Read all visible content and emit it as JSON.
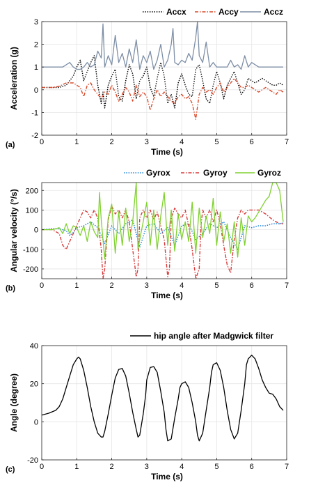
{
  "chart_data": [
    {
      "type": "line",
      "panel_label": "(a)",
      "xlabel": "Time (s)",
      "ylabel": "Acceleration (g)",
      "xlim": [
        0,
        7
      ],
      "ylim": [
        -2,
        3
      ],
      "xticks": [
        0,
        1,
        2,
        3,
        4,
        5,
        6,
        7
      ],
      "yticks": [
        -2,
        -1,
        0,
        1,
        2,
        3
      ],
      "grid": true,
      "legend": "top-right",
      "series": [
        {
          "name": "Accx",
          "color": "#000000",
          "style": "dotted",
          "x": [
            0,
            0.3,
            0.5,
            0.7,
            0.9,
            1.0,
            1.1,
            1.2,
            1.3,
            1.4,
            1.5,
            1.6,
            1.7,
            1.75,
            1.8,
            1.9,
            2.0,
            2.1,
            2.2,
            2.3,
            2.4,
            2.5,
            2.6,
            2.7,
            2.8,
            2.9,
            3.0,
            3.1,
            3.2,
            3.3,
            3.4,
            3.5,
            3.6,
            3.7,
            3.8,
            3.9,
            4.0,
            4.1,
            4.2,
            4.3,
            4.4,
            4.5,
            4.6,
            4.7,
            4.8,
            4.9,
            5.0,
            5.1,
            5.2,
            5.3,
            5.4,
            5.5,
            5.6,
            5.7,
            5.8,
            5.9,
            6.0,
            6.1,
            6.2,
            6.3,
            6.4,
            6.5,
            6.6,
            6.7,
            6.8,
            6.9
          ],
          "y": [
            0.1,
            0.1,
            0.1,
            0.2,
            0.6,
            1.0,
            1.3,
            0.4,
            0.8,
            1.2,
            1.5,
            0.2,
            -0.6,
            -0.1,
            -0.8,
            0.2,
            0.6,
            0.9,
            -0.3,
            -0.5,
            0.4,
            1.1,
            0.7,
            -0.4,
            0.4,
            0.6,
            1.0,
            0.1,
            -0.3,
            0.5,
            1.2,
            0.6,
            -0.6,
            -0.2,
            -0.8,
            0.3,
            0.7,
            0.2,
            -0.2,
            -0.3,
            0.9,
            1.1,
            0.4,
            -0.4,
            -0.6,
            0.2,
            0.8,
            0.3,
            -0.4,
            0.2,
            0.5,
            0.8,
            0.3,
            -0.2,
            0.0,
            0.5,
            0.4,
            0.3,
            0.4,
            0.5,
            0.4,
            0.3,
            0.2,
            0.2,
            0.3,
            0.2
          ]
        },
        {
          "name": "Accy",
          "color": "#d84a2b",
          "style": "dashdot",
          "x": [
            0,
            0.3,
            0.5,
            0.7,
            0.9,
            1.0,
            1.1,
            1.2,
            1.3,
            1.4,
            1.5,
            1.6,
            1.7,
            1.8,
            1.9,
            2.0,
            2.1,
            2.2,
            2.3,
            2.4,
            2.5,
            2.6,
            2.7,
            2.8,
            2.9,
            3.0,
            3.1,
            3.2,
            3.3,
            3.4,
            3.5,
            3.6,
            3.7,
            3.8,
            3.9,
            4.0,
            4.1,
            4.2,
            4.3,
            4.4,
            4.5,
            4.6,
            4.7,
            4.8,
            4.9,
            5.0,
            5.1,
            5.2,
            5.3,
            5.4,
            5.5,
            5.6,
            5.7,
            5.8,
            5.9,
            6.0,
            6.1,
            6.2,
            6.3,
            6.4,
            6.5,
            6.6,
            6.7,
            6.8,
            6.9
          ],
          "y": [
            0.1,
            0.1,
            0.15,
            0.3,
            0.3,
            0.2,
            0.1,
            -0.3,
            0.2,
            0.3,
            0.0,
            -0.2,
            -0.4,
            -0.1,
            -0.2,
            0.2,
            -0.1,
            -0.5,
            -0.2,
            0.1,
            -0.1,
            -0.5,
            0.2,
            -0.3,
            -0.1,
            -0.3,
            -0.9,
            -0.4,
            0.0,
            -0.3,
            -0.1,
            -0.3,
            -0.5,
            -0.6,
            -0.3,
            -0.2,
            -0.4,
            -0.3,
            -0.6,
            -1.3,
            -0.2,
            0.1,
            -0.1,
            0.0,
            -0.2,
            0.1,
            0.3,
            -0.1,
            0.1,
            0.3,
            0.5,
            0.3,
            0.1,
            0.1,
            0.2,
            0.1,
            0.0,
            -0.1,
            0.0,
            0.1,
            0.0,
            -0.1,
            -0.2,
            0.0,
            -0.1
          ]
        },
        {
          "name": "Accz",
          "color": "#7d8ea6",
          "style": "solid",
          "x": [
            0,
            0.3,
            0.6,
            0.8,
            0.9,
            1.0,
            1.1,
            1.2,
            1.3,
            1.4,
            1.5,
            1.6,
            1.7,
            1.75,
            1.8,
            1.9,
            2.0,
            2.1,
            2.2,
            2.3,
            2.4,
            2.5,
            2.6,
            2.7,
            2.8,
            2.9,
            3.0,
            3.1,
            3.2,
            3.3,
            3.4,
            3.5,
            3.6,
            3.7,
            3.75,
            3.8,
            3.9,
            4.0,
            4.1,
            4.2,
            4.3,
            4.4,
            4.45,
            4.5,
            4.6,
            4.7,
            4.8,
            4.9,
            5.0,
            5.1,
            5.2,
            5.3,
            5.4,
            5.5,
            5.6,
            5.7,
            5.8,
            5.9,
            6.0,
            6.2,
            6.4,
            6.6,
            6.8,
            6.9
          ],
          "y": [
            1.0,
            1.0,
            1.0,
            1.2,
            1.0,
            0.9,
            0.9,
            1.0,
            1.2,
            1.0,
            1.1,
            1.7,
            1.4,
            2.9,
            1.0,
            1.5,
            1.1,
            2.4,
            1.2,
            1.6,
            1.0,
            1.8,
            1.2,
            2.2,
            0.9,
            1.5,
            1.2,
            1.7,
            0.9,
            1.3,
            2.0,
            1.0,
            1.3,
            2.0,
            2.7,
            1.2,
            1.1,
            1.3,
            1.2,
            1.6,
            1.3,
            2.3,
            3.0,
            1.5,
            1.2,
            2.1,
            1.0,
            1.2,
            1.0,
            1.0,
            1.0,
            1.0,
            1.3,
            1.0,
            1.1,
            0.9,
            1.5,
            1.0,
            1.2,
            1.0,
            1.0,
            1.0,
            1.0,
            1.0
          ]
        }
      ]
    },
    {
      "type": "line",
      "panel_label": "(b)",
      "xlabel": "Time (s)",
      "ylabel": "Angular velocity (°/s)",
      "xlim": [
        0,
        7
      ],
      "ylim": [
        -250,
        240
      ],
      "xticks": [
        0,
        1,
        2,
        3,
        4,
        5,
        6,
        7
      ],
      "yticks": [
        -200,
        -100,
        0,
        100,
        200
      ],
      "grid": true,
      "legend": "top-right",
      "series": [
        {
          "name": "Gyrox",
          "color": "#1a7fd8",
          "style": "dotted",
          "x": [
            0,
            0.3,
            0.5,
            0.7,
            0.8,
            0.9,
            1.0,
            1.2,
            1.4,
            1.6,
            1.8,
            2.0,
            2.2,
            2.4,
            2.6,
            2.8,
            3.0,
            3.2,
            3.4,
            3.6,
            3.8,
            4.0,
            4.2,
            4.4,
            4.6,
            4.8,
            5.0,
            5.2,
            5.4,
            5.6,
            5.8,
            6.0,
            6.2,
            6.4,
            6.6,
            6.8,
            6.9
          ],
          "y": [
            0,
            5,
            5,
            -5,
            -30,
            -15,
            10,
            20,
            40,
            10,
            -70,
            20,
            -20,
            30,
            50,
            -90,
            20,
            30,
            -20,
            10,
            -80,
            20,
            30,
            -50,
            -20,
            30,
            10,
            40,
            -40,
            -100,
            20,
            10,
            20,
            20,
            30,
            30,
            35
          ]
        },
        {
          "name": "Gyroy",
          "color": "#d83a3a",
          "style": "dashdot",
          "x": [
            0,
            0.3,
            0.5,
            0.6,
            0.7,
            0.8,
            0.9,
            1.0,
            1.1,
            1.2,
            1.3,
            1.4,
            1.5,
            1.6,
            1.7,
            1.75,
            1.8,
            1.9,
            2.0,
            2.1,
            2.2,
            2.3,
            2.4,
            2.5,
            2.6,
            2.7,
            2.75,
            2.8,
            2.9,
            3.0,
            3.1,
            3.2,
            3.3,
            3.4,
            3.5,
            3.6,
            3.65,
            3.7,
            3.8,
            3.9,
            4.0,
            4.1,
            4.2,
            4.3,
            4.4,
            4.5,
            4.55,
            4.6,
            4.7,
            4.8,
            4.9,
            5.0,
            5.1,
            5.2,
            5.3,
            5.4,
            5.5,
            5.6,
            5.7,
            5.8,
            5.9,
            6.0,
            6.2,
            6.4,
            6.6,
            6.8,
            6.9
          ],
          "y": [
            0,
            0,
            -20,
            -80,
            -100,
            -60,
            -20,
            20,
            60,
            100,
            90,
            60,
            100,
            60,
            -100,
            -250,
            -200,
            50,
            120,
            80,
            100,
            60,
            100,
            40,
            -100,
            -240,
            -200,
            60,
            100,
            60,
            100,
            50,
            90,
            20,
            -50,
            -240,
            -200,
            60,
            110,
            80,
            60,
            100,
            20,
            -100,
            -250,
            -200,
            20,
            100,
            60,
            100,
            40,
            100,
            30,
            -80,
            -180,
            -220,
            -50,
            60,
            100,
            80,
            100,
            100,
            100,
            80,
            50,
            30,
            30
          ]
        },
        {
          "name": "Gyroz",
          "color": "#7fd12e",
          "style": "solid",
          "x": [
            0,
            0.3,
            0.5,
            0.6,
            0.7,
            0.8,
            0.9,
            1.0,
            1.1,
            1.2,
            1.3,
            1.4,
            1.5,
            1.6,
            1.65,
            1.7,
            1.8,
            1.9,
            2.0,
            2.1,
            2.2,
            2.3,
            2.4,
            2.5,
            2.6,
            2.7,
            2.75,
            2.8,
            2.9,
            3.0,
            3.1,
            3.2,
            3.3,
            3.4,
            3.5,
            3.6,
            3.7,
            3.8,
            3.9,
            4.0,
            4.1,
            4.2,
            4.3,
            4.4,
            4.5,
            4.6,
            4.7,
            4.8,
            4.9,
            5.0,
            5.1,
            5.2,
            5.3,
            5.4,
            5.5,
            5.6,
            5.7,
            5.8,
            5.9,
            6.0,
            6.1,
            6.2,
            6.3,
            6.4,
            6.5,
            6.6,
            6.7,
            6.8,
            6.9
          ],
          "y": [
            0,
            0,
            10,
            -20,
            30,
            -20,
            20,
            10,
            -30,
            20,
            -60,
            40,
            -10,
            -40,
            190,
            50,
            -150,
            60,
            130,
            -120,
            90,
            -80,
            110,
            -60,
            40,
            240,
            -100,
            -50,
            40,
            140,
            -80,
            100,
            -100,
            70,
            190,
            -80,
            100,
            -110,
            80,
            -50,
            40,
            -60,
            140,
            -120,
            110,
            -40,
            70,
            -20,
            160,
            -80,
            90,
            -60,
            30,
            -120,
            40,
            -140,
            60,
            -80,
            70,
            40,
            60,
            90,
            120,
            150,
            170,
            240,
            240,
            200,
            40
          ]
        }
      ]
    },
    {
      "type": "line",
      "panel_label": "(c)",
      "xlabel": "Time (s)",
      "ylabel": "Angle (degree)",
      "xlim": [
        0,
        7
      ],
      "ylim": [
        -20,
        40
      ],
      "xticks": [
        0,
        1,
        2,
        3,
        4,
        5,
        6,
        7
      ],
      "yticks": [
        -20,
        0,
        20,
        40
      ],
      "grid": true,
      "legend": "top-right",
      "series": [
        {
          "name": "hip angle after Madgwick filter",
          "color": "#000000",
          "style": "solid",
          "x": [
            0,
            0.2,
            0.4,
            0.5,
            0.6,
            0.7,
            0.8,
            0.9,
            1.0,
            1.05,
            1.1,
            1.2,
            1.3,
            1.4,
            1.5,
            1.6,
            1.7,
            1.75,
            1.8,
            1.9,
            2.0,
            2.1,
            2.2,
            2.3,
            2.4,
            2.5,
            2.6,
            2.7,
            2.75,
            2.8,
            2.9,
            2.97,
            3.0,
            3.1,
            3.2,
            3.3,
            3.4,
            3.5,
            3.55,
            3.6,
            3.7,
            3.8,
            3.9,
            3.95,
            4.0,
            4.1,
            4.2,
            4.3,
            4.4,
            4.45,
            4.5,
            4.6,
            4.7,
            4.8,
            4.85,
            4.9,
            5.0,
            5.1,
            5.2,
            5.3,
            5.4,
            5.5,
            5.6,
            5.7,
            5.8,
            5.85,
            5.9,
            6.0,
            6.1,
            6.2,
            6.3,
            6.4,
            6.5,
            6.6,
            6.7,
            6.8,
            6.9
          ],
          "y": [
            3.5,
            4.5,
            6,
            8,
            12,
            18,
            24,
            30,
            33,
            34,
            33,
            27,
            18,
            8,
            0,
            -6,
            -8,
            -8,
            -5,
            4,
            14,
            23,
            27.5,
            28,
            24,
            15,
            5,
            -4,
            -8,
            -7,
            4,
            14,
            22,
            28.5,
            29,
            26,
            16,
            5,
            -4,
            -10,
            -9,
            2,
            12,
            18,
            20,
            21,
            18,
            10,
            0,
            -7,
            -10,
            -6,
            6,
            18,
            26,
            30,
            31,
            27,
            18,
            6,
            -4,
            -9,
            -6,
            6,
            20,
            30,
            33,
            35,
            33,
            28,
            22,
            18,
            15,
            14.5,
            12,
            8,
            6
          ]
        }
      ]
    }
  ]
}
